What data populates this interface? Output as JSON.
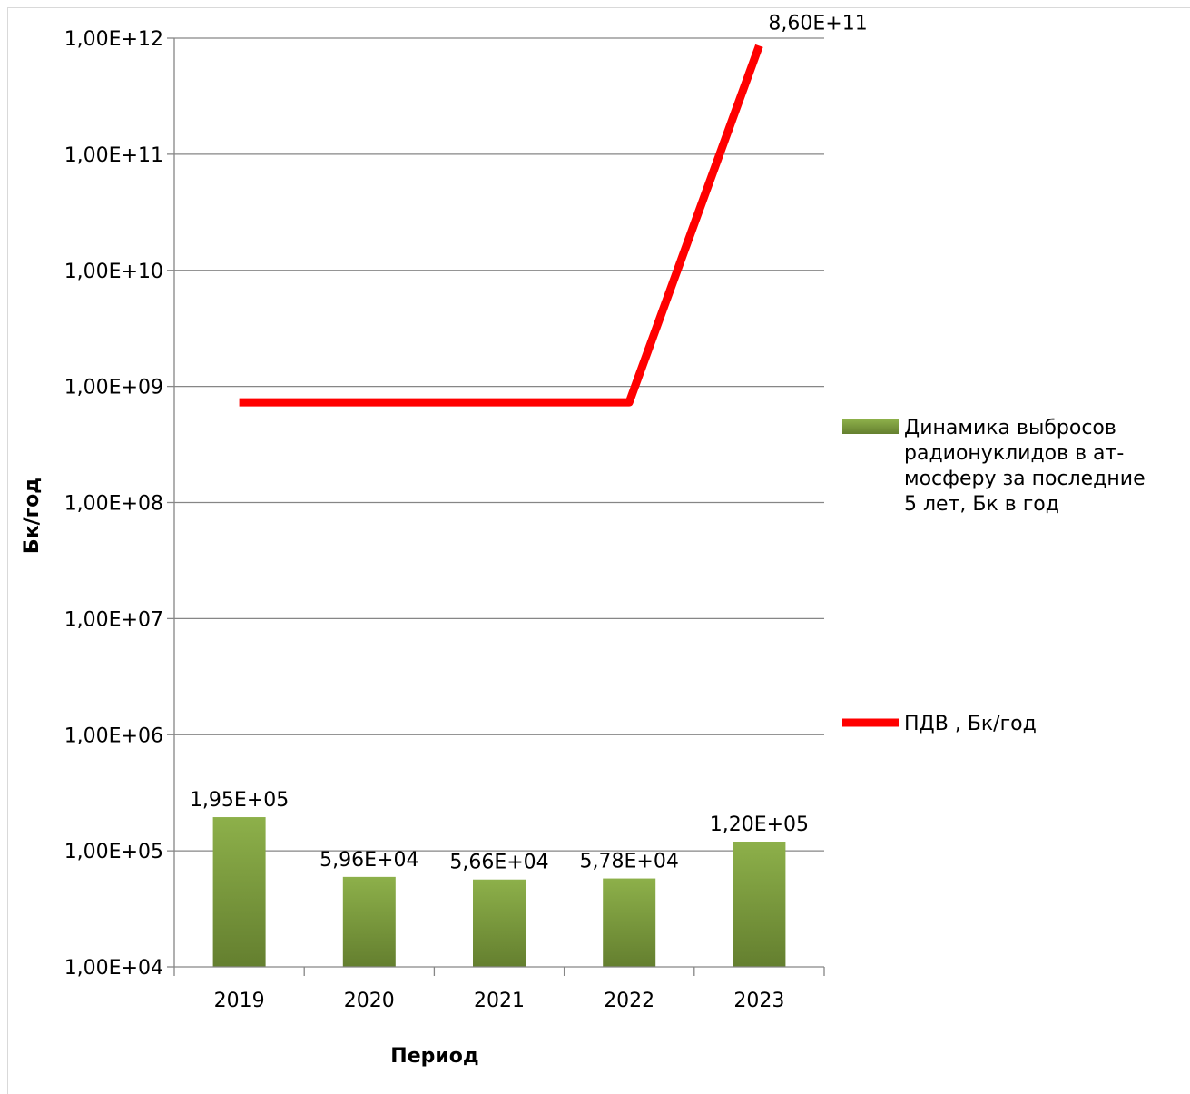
{
  "chart_data": {
    "type": "bar",
    "y_scale": "log",
    "categories": [
      "2019",
      "2020",
      "2021",
      "2022",
      "2023"
    ],
    "ylim": [
      10000.0,
      1000000000000.0
    ],
    "grid": true,
    "legend_position": "right",
    "xlabel": "Период",
    "ylabel": "Бк/год",
    "y_tick_labels": [
      "1,00E+04",
      "1,00E+05",
      "1,00E+06",
      "1,00E+07",
      "1,00E+08",
      "1,00E+09",
      "1,00E+10",
      "1,00E+11",
      "1,00E+12"
    ],
    "y_tick_values": [
      10000.0,
      100000.0,
      1000000.0,
      10000000.0,
      100000000.0,
      1000000000.0,
      10000000000.0,
      100000000000.0,
      1000000000000.0
    ],
    "series": [
      {
        "name": "Динамика выбросов радионуклидов в атмосферу за последние 5 лет, Бк в год",
        "legend_lines": [
          "Динамика выбросов",
          "радионуклидов в ат-",
          "мосферу за последние",
          "5 лет, Бк в год"
        ],
        "type": "bar",
        "color": "#77933c",
        "values": [
          195000,
          59600,
          56600,
          57800,
          120000
        ],
        "data_labels": [
          "1,95E+05",
          "5,96E+04",
          "5,66E+04",
          "5,78E+04",
          "1,20E+05"
        ]
      },
      {
        "name": "ПДВ , Бк/год",
        "legend_lines": [
          "ПДВ , Бк/год"
        ],
        "type": "line",
        "color": "#ff0000",
        "values": [
          730000000,
          730000000,
          730000000,
          730000000,
          860000000000
        ],
        "data_labels": [
          "",
          "",
          "",
          "",
          "8,60E+11"
        ]
      }
    ]
  }
}
